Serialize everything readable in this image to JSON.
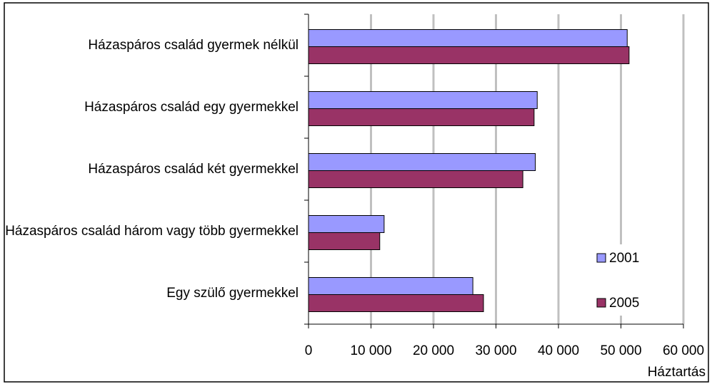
{
  "chart_data": {
    "type": "bar",
    "orientation": "horizontal",
    "categories": [
      "Házaspáros család gyermek nélkül",
      "Házaspáros család egy gyermekkel",
      "Házaspáros család két gyermekkel",
      "Házaspáros család három vagy több gyermekkel",
      "Egy szülő gyermekkel"
    ],
    "series": [
      {
        "name": "2001",
        "color": "#9999ff",
        "values": [
          51000,
          36600,
          36300,
          12100,
          26300
        ]
      },
      {
        "name": "2005",
        "color": "#993366",
        "values": [
          51300,
          36100,
          34300,
          11400,
          28000
        ]
      }
    ],
    "xlim": [
      0,
      60000
    ],
    "xticks": [
      0,
      {
        "value": 10000,
        "label": "10 000"
      },
      {
        "value": 20000,
        "label": "20 000"
      },
      {
        "value": 30000,
        "label": "30 000"
      },
      {
        "value": 40000,
        "label": "40 000"
      },
      {
        "value": 50000,
        "label": "50 000"
      },
      {
        "value": 60000,
        "label": "60 000"
      }
    ],
    "x_label": "Háztartás",
    "grid": true,
    "legend": "right"
  }
}
